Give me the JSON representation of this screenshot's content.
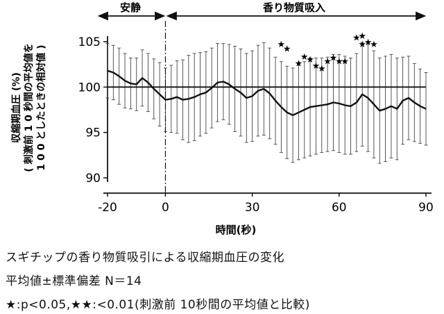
{
  "chart_data": {
    "type": "line",
    "title": "スギチップの香り物質吸引による収縮期血圧の変化",
    "phases": [
      {
        "label": "安静",
        "from": -20,
        "to": 0
      },
      {
        "label": "香り物質吸入",
        "from": 0,
        "to": 90
      }
    ],
    "xlabel": "時間(秒)",
    "ylabel_line1": "収縮期血圧 (%)",
    "ylabel_line2": "( 刺激前 1 0 秒間の平均値を",
    "ylabel_line3": "1 0 0 としたときの相対値 )",
    "xlim": [
      -20,
      90
    ],
    "ylim": [
      90,
      105
    ],
    "xticks": [
      -20,
      0,
      30,
      60,
      90
    ],
    "yticks": [
      90,
      95,
      100,
      105
    ],
    "reference_line": 100,
    "stimulus_x": 0,
    "x": [
      -20,
      -18,
      -16,
      -14,
      -12,
      -10,
      -8,
      -6,
      -4,
      -2,
      0,
      2,
      4,
      6,
      8,
      10,
      12,
      14,
      16,
      18,
      20,
      22,
      24,
      26,
      28,
      30,
      32,
      34,
      36,
      38,
      40,
      42,
      44,
      46,
      48,
      50,
      52,
      54,
      56,
      58,
      60,
      62,
      64,
      66,
      68,
      70,
      72,
      74,
      76,
      78,
      80,
      82,
      84,
      86,
      88,
      90
    ],
    "mean": [
      101.8,
      101.6,
      101.2,
      100.7,
      100.4,
      100.3,
      101.0,
      100.5,
      99.8,
      99.2,
      98.6,
      98.7,
      98.9,
      98.6,
      98.7,
      98.9,
      99.2,
      99.4,
      99.9,
      100.5,
      100.6,
      100.3,
      99.8,
      99.4,
      98.8,
      99.0,
      99.6,
      99.8,
      99.3,
      98.5,
      97.8,
      97.2,
      96.9,
      97.2,
      97.5,
      97.8,
      97.9,
      98.0,
      98.1,
      98.3,
      98.2,
      98.0,
      97.9,
      98.3,
      99.2,
      98.8,
      98.1,
      97.4,
      97.6,
      97.9,
      97.6,
      98.5,
      98.8,
      98.3,
      97.9,
      97.6
    ],
    "error": [
      3.0,
      3.0,
      3.1,
      3.0,
      2.8,
      2.9,
      3.1,
      3.2,
      3.3,
      3.5,
      3.5,
      3.7,
      4.0,
      4.4,
      4.8,
      4.8,
      4.6,
      4.5,
      4.4,
      4.3,
      4.2,
      4.4,
      4.7,
      4.8,
      4.9,
      5.0,
      5.0,
      5.1,
      5.0,
      4.8,
      5.0,
      5.1,
      5.2,
      5.2,
      5.3,
      5.4,
      5.3,
      5.2,
      5.2,
      5.3,
      5.4,
      5.4,
      5.3,
      5.4,
      5.7,
      5.9,
      5.9,
      5.8,
      5.8,
      5.7,
      5.6,
      4.8,
      4.6,
      4.3,
      4.1,
      4.0
    ],
    "single_star": [
      {
        "x": 40,
        "y": 104.4
      },
      {
        "x": 42,
        "y": 103.9
      },
      {
        "x": 46,
        "y": 102.3
      },
      {
        "x": 48,
        "y": 103.0
      },
      {
        "x": 50,
        "y": 102.7
      },
      {
        "x": 52,
        "y": 102.0
      },
      {
        "x": 54,
        "y": 101.7
      },
      {
        "x": 56,
        "y": 102.5
      },
      {
        "x": 58,
        "y": 102.9
      },
      {
        "x": 60,
        "y": 102.5
      },
      {
        "x": 62,
        "y": 102.5
      },
      {
        "x": 68,
        "y": 104.4
      },
      {
        "x": 70,
        "y": 104.6
      },
      {
        "x": 72,
        "y": 104.4
      }
    ],
    "double_star": [
      {
        "x": 66,
        "y": 105.1
      },
      {
        "x": 68,
        "y": 105.3
      }
    ]
  },
  "captions": {
    "line1": "スギチップの香り物質吸引による収縮期血圧の変化",
    "line2": "平均値±標準偏差 N＝14",
    "line3": "★:p<0.05,★★:<0.01(刺激前 10秒間の平均値と比較)"
  }
}
